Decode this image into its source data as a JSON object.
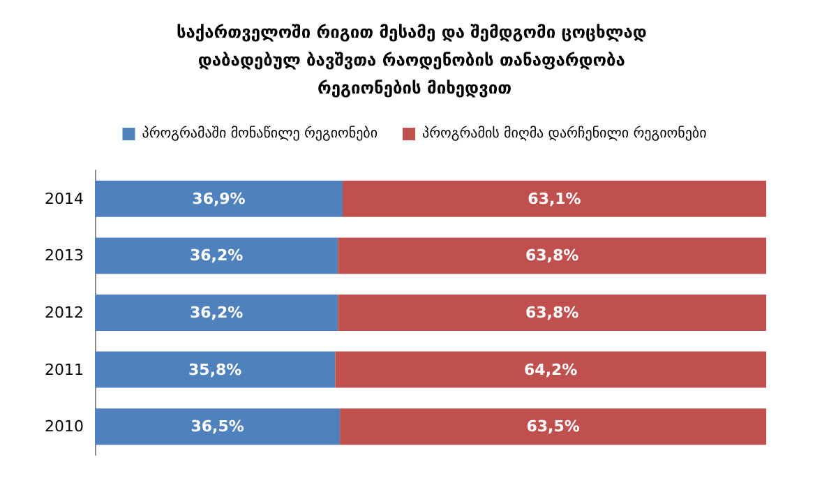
{
  "chart_data": {
    "type": "bar",
    "orientation": "horizontal",
    "stacked": true,
    "title": "საქართველოში რიგით მესამე და შემდგომი ცოცხლად დაბადებულ ბავშვთა რაოდენობის თანაფარდობა რეგიონების მიხედვით",
    "categories": [
      "2014",
      "2013",
      "2012",
      "2011",
      "2010"
    ],
    "series": [
      {
        "name": "პროგრამაში მონაწილე რეგიონები",
        "color": "#4f81bd",
        "values": [
          36.9,
          36.2,
          36.2,
          35.8,
          36.5
        ],
        "value_labels": [
          "36,9%",
          "36,2%",
          "36,2%",
          "35,8%",
          "36,5%"
        ]
      },
      {
        "name": "პროგრამის მიღმა დარჩენილი რეგიონები",
        "color": "#c0504d",
        "values": [
          63.1,
          63.8,
          63.8,
          64.2,
          63.5
        ],
        "value_labels": [
          "63,1%",
          "63,8%",
          "63,8%",
          "64,2%",
          "63,5%"
        ]
      }
    ],
    "legend": "top"
  }
}
